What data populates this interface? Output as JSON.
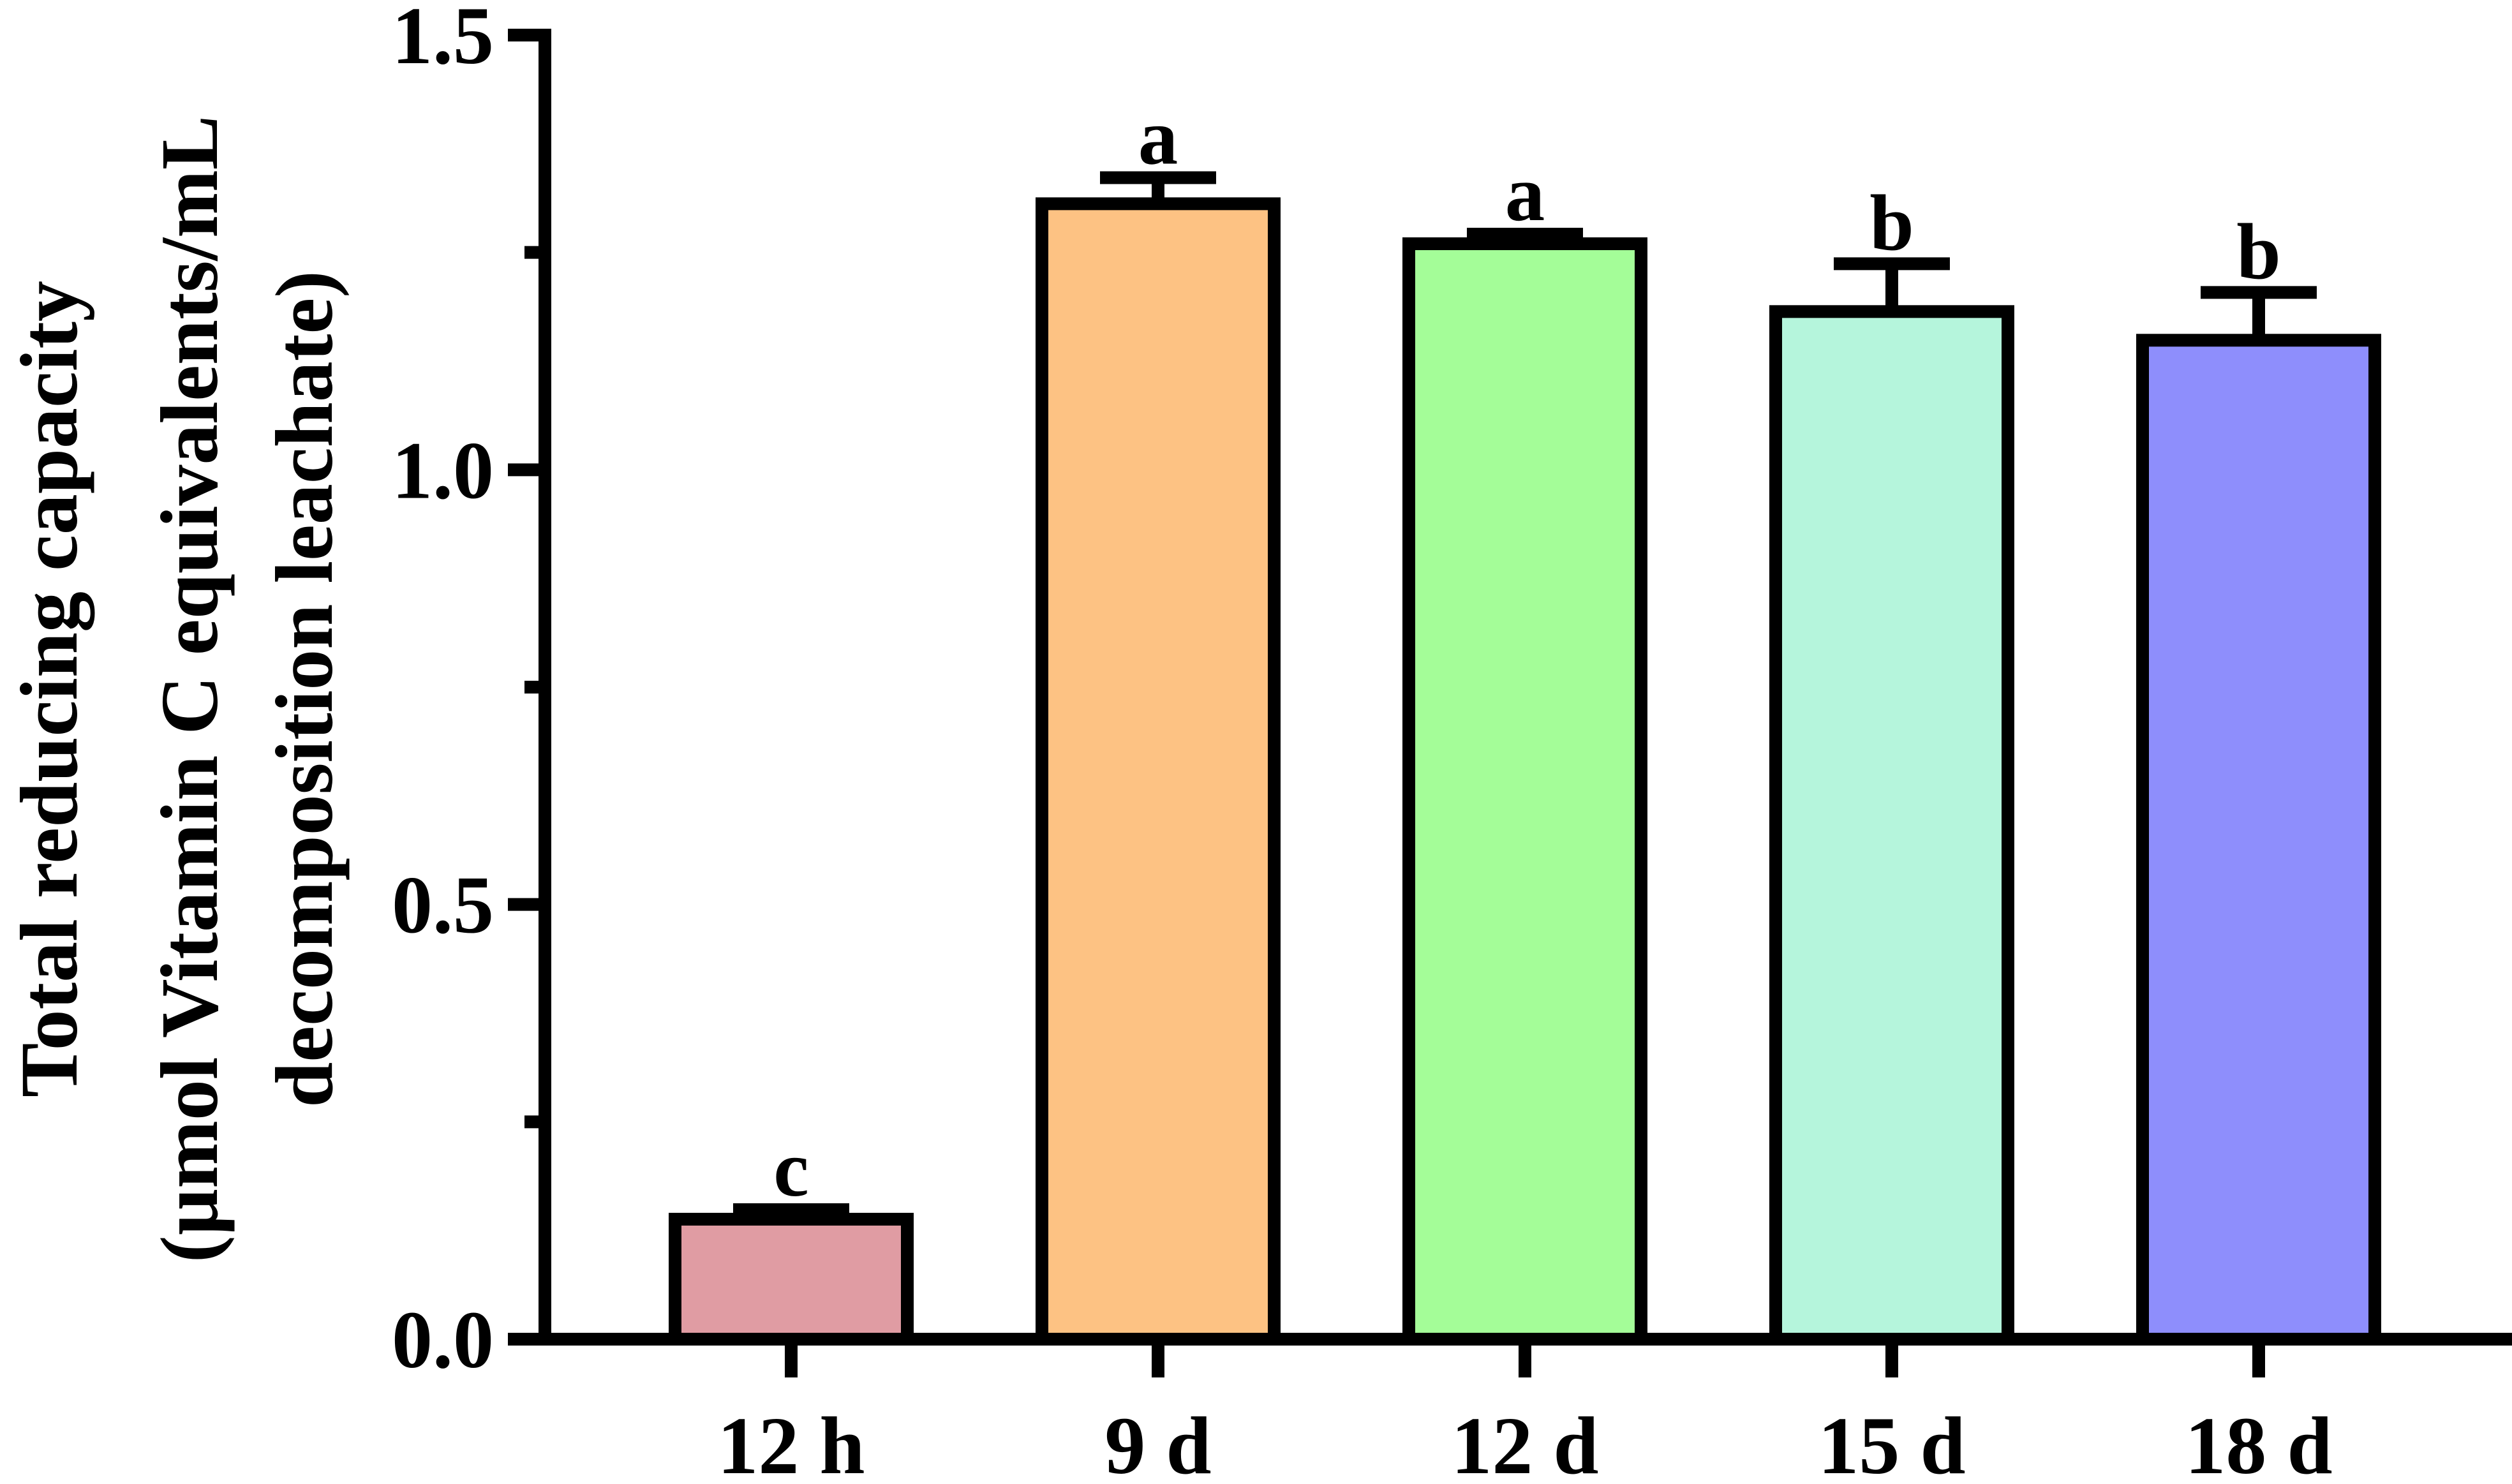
{
  "chart_data": {
    "type": "bar",
    "ylabel": [
      "Total reducing capacity",
      "(µmol Vitamin C equivalents/mL",
      "decomposition leachate)"
    ],
    "categories": [
      "12 h",
      "9 d",
      "12 d",
      "15 d",
      "18 d"
    ],
    "values": [
      0.138,
      1.306,
      1.26,
      1.182,
      1.149
    ],
    "errors": [
      0.011,
      0.03,
      0.011,
      0.055,
      0.055
    ],
    "labels": [
      "c",
      "a",
      "a",
      "b",
      "b"
    ],
    "colors": [
      "#e09ca3",
      "#fdc283",
      "#a4fd98",
      "#b5f5dc",
      "#8e8efc"
    ],
    "ylim": [
      0,
      1.5
    ],
    "yticks": [
      {
        "value": 0,
        "label": "0.0"
      },
      {
        "value": 0.5,
        "label": "0.5"
      },
      {
        "value": 1,
        "label": "1.0"
      },
      {
        "value": 1.5,
        "label": "1.5"
      }
    ],
    "minor_yticks": [
      0.25,
      0.75,
      1.25
    ]
  }
}
